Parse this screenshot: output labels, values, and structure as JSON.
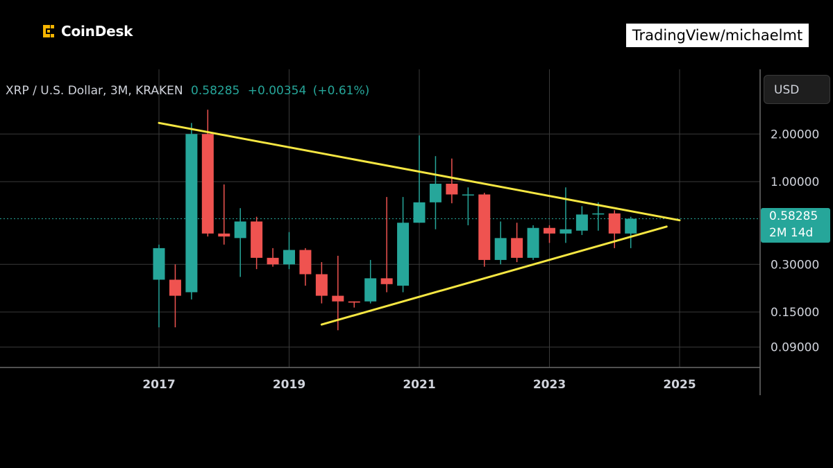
{
  "brand": {
    "name": "CoinDesk",
    "logo_color": "#f7b500"
  },
  "credit": "TradingView/michaelmt",
  "header": {
    "symbol": "XRP / U.S. Dollar, 3M, KRAKEN",
    "last": "0.58285",
    "change": "+0.00354",
    "change_pct": "(+0.61%)"
  },
  "currency_button": "USD",
  "price_tag": {
    "price": "0.58285",
    "countdown": "2M 14d"
  },
  "colors": {
    "up": "#26a69a",
    "down": "#ef5350",
    "trendline": "#f5e642",
    "grid": "#3a3a3a",
    "text": "#d1d4dc"
  },
  "chart_data": {
    "type": "candlestick",
    "y_scale": "log",
    "ylim": [
      0.072,
      3.0
    ],
    "y_ticks": [
      2.0,
      1.0,
      0.3,
      0.15,
      0.09
    ],
    "y_tick_labels": [
      "2.00000",
      "1.00000",
      "0.30000",
      "0.15000",
      "0.09000"
    ],
    "x_tick_labels": [
      "2017",
      "2019",
      "2021",
      "2023",
      "2025"
    ],
    "x_ticks": [
      2017.0,
      2019.0,
      2021.0,
      2023.0,
      2025.0
    ],
    "xlim": [
      2015.2,
      2026.5
    ],
    "last_price_line": 0.58285,
    "candles": [
      {
        "t": "2017-Q1",
        "x": 2017.0,
        "o": 0.24,
        "h": 0.4,
        "l": 0.12,
        "c": 0.38
      },
      {
        "t": "2017-Q2",
        "x": 2017.25,
        "o": 0.24,
        "h": 0.3,
        "l": 0.12,
        "c": 0.19
      },
      {
        "t": "2017-Q3",
        "x": 2017.5,
        "o": 0.2,
        "h": 2.35,
        "l": 0.18,
        "c": 2.0
      },
      {
        "t": "2017-Q4",
        "x": 2017.75,
        "o": 2.0,
        "h": 2.85,
        "l": 0.45,
        "c": 0.47
      },
      {
        "t": "2018-Q1",
        "x": 2018.0,
        "o": 0.47,
        "h": 0.96,
        "l": 0.4,
        "c": 0.45
      },
      {
        "t": "2018-Q2",
        "x": 2018.25,
        "o": 0.44,
        "h": 0.68,
        "l": 0.25,
        "c": 0.56
      },
      {
        "t": "2018-Q3",
        "x": 2018.5,
        "o": 0.56,
        "h": 0.6,
        "l": 0.28,
        "c": 0.33
      },
      {
        "t": "2018-Q4",
        "x": 2018.75,
        "o": 0.33,
        "h": 0.38,
        "l": 0.29,
        "c": 0.3
      },
      {
        "t": "2019-Q1",
        "x": 2019.0,
        "o": 0.3,
        "h": 0.48,
        "l": 0.28,
        "c": 0.37
      },
      {
        "t": "2019-Q2",
        "x": 2019.25,
        "o": 0.37,
        "h": 0.38,
        "l": 0.22,
        "c": 0.26
      },
      {
        "t": "2019-Q3",
        "x": 2019.5,
        "o": 0.26,
        "h": 0.31,
        "l": 0.17,
        "c": 0.19
      },
      {
        "t": "2019-Q4",
        "x": 2019.75,
        "o": 0.19,
        "h": 0.34,
        "l": 0.115,
        "c": 0.175
      },
      {
        "t": "2020-Q1",
        "x": 2020.0,
        "o": 0.175,
        "h": 0.175,
        "l": 0.16,
        "c": 0.172
      },
      {
        "t": "2020-Q2",
        "x": 2020.25,
        "o": 0.175,
        "h": 0.32,
        "l": 0.17,
        "c": 0.245
      },
      {
        "t": "2020-Q3",
        "x": 2020.5,
        "o": 0.245,
        "h": 0.8,
        "l": 0.2,
        "c": 0.225
      },
      {
        "t": "2020-Q4",
        "x": 2020.75,
        "o": 0.22,
        "h": 0.8,
        "l": 0.2,
        "c": 0.55
      },
      {
        "t": "2021-Q1",
        "x": 2021.0,
        "o": 0.55,
        "h": 1.96,
        "l": 0.55,
        "c": 0.74
      },
      {
        "t": "2021-Q2",
        "x": 2021.25,
        "o": 0.74,
        "h": 1.45,
        "l": 0.5,
        "c": 0.97
      },
      {
        "t": "2021-Q3",
        "x": 2021.5,
        "o": 0.97,
        "h": 1.4,
        "l": 0.73,
        "c": 0.83
      },
      {
        "t": "2021-Q4",
        "x": 2021.75,
        "o": 0.83,
        "h": 0.92,
        "l": 0.53,
        "c": 0.83
      },
      {
        "t": "2022-Q1",
        "x": 2022.0,
        "o": 0.83,
        "h": 0.85,
        "l": 0.29,
        "c": 0.32
      },
      {
        "t": "2022-Q2",
        "x": 2022.25,
        "o": 0.32,
        "h": 0.56,
        "l": 0.3,
        "c": 0.44
      },
      {
        "t": "2022-Q3",
        "x": 2022.5,
        "o": 0.44,
        "h": 0.55,
        "l": 0.31,
        "c": 0.33
      },
      {
        "t": "2022-Q4",
        "x": 2022.75,
        "o": 0.33,
        "h": 0.53,
        "l": 0.32,
        "c": 0.51
      },
      {
        "t": "2023-Q1",
        "x": 2023.0,
        "o": 0.51,
        "h": 0.53,
        "l": 0.41,
        "c": 0.47
      },
      {
        "t": "2023-Q2",
        "x": 2023.25,
        "o": 0.47,
        "h": 0.92,
        "l": 0.41,
        "c": 0.5
      },
      {
        "t": "2023-Q3",
        "x": 2023.5,
        "o": 0.49,
        "h": 0.7,
        "l": 0.46,
        "c": 0.62
      },
      {
        "t": "2023-Q4",
        "x": 2023.75,
        "o": 0.62,
        "h": 0.74,
        "l": 0.49,
        "c": 0.63
      },
      {
        "t": "2024-Q1",
        "x": 2024.0,
        "o": 0.63,
        "h": 0.66,
        "l": 0.38,
        "c": 0.47
      },
      {
        "t": "2024-Q2",
        "x": 2024.25,
        "o": 0.47,
        "h": 0.6,
        "l": 0.38,
        "c": 0.58285
      }
    ],
    "trendlines": [
      {
        "name": "",
        "x": [
          2017.0,
          2025.0
        ],
        "y": [
          2.35,
          0.57
        ]
      },
      {
        "name": "",
        "x": [
          2019.5,
          2024.8
        ],
        "y": [
          0.125,
          0.52
        ]
      }
    ]
  }
}
